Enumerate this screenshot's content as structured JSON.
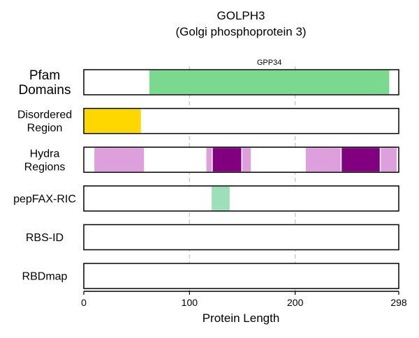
{
  "chart_data": {
    "type": "bar",
    "title": "GOLPH3",
    "subtitle": "(Golgi phosphoprotein 3)",
    "xlabel": "Protein Length",
    "xlim": [
      0,
      298
    ],
    "xticks": [
      0,
      100,
      200,
      298
    ],
    "grid": {
      "vertical_dashed_at": [
        100,
        200
      ]
    },
    "tracks": [
      {
        "label": [
          "Pfam",
          "Domains"
        ],
        "segments": [
          {
            "start": 62,
            "end": 289,
            "color": "#7bd98f",
            "annotation": "GPP34"
          }
        ]
      },
      {
        "label": [
          "Disordered",
          "Region"
        ],
        "segments": [
          {
            "start": 0,
            "end": 54,
            "color": "#ffd700"
          }
        ]
      },
      {
        "label": [
          "Hydra",
          "Regions"
        ],
        "segments": [
          {
            "start": 10,
            "end": 57,
            "color": "#dda0dd"
          },
          {
            "start": 116,
            "end": 121,
            "color": "#dda0dd"
          },
          {
            "start": 122,
            "end": 149,
            "color": "#800080"
          },
          {
            "start": 150,
            "end": 158,
            "color": "#dda0dd"
          },
          {
            "start": 210,
            "end": 243,
            "color": "#dda0dd"
          },
          {
            "start": 244,
            "end": 280,
            "color": "#800080"
          },
          {
            "start": 281,
            "end": 296,
            "color": "#dda0dd"
          }
        ]
      },
      {
        "label": [
          "pepFAX-RIC"
        ],
        "segments": [
          {
            "start": 121,
            "end": 138,
            "color": "#9de0b8"
          }
        ]
      },
      {
        "label": [
          "RBS-ID"
        ],
        "segments": []
      },
      {
        "label": [
          "RBDmap"
        ],
        "segments": []
      }
    ]
  }
}
